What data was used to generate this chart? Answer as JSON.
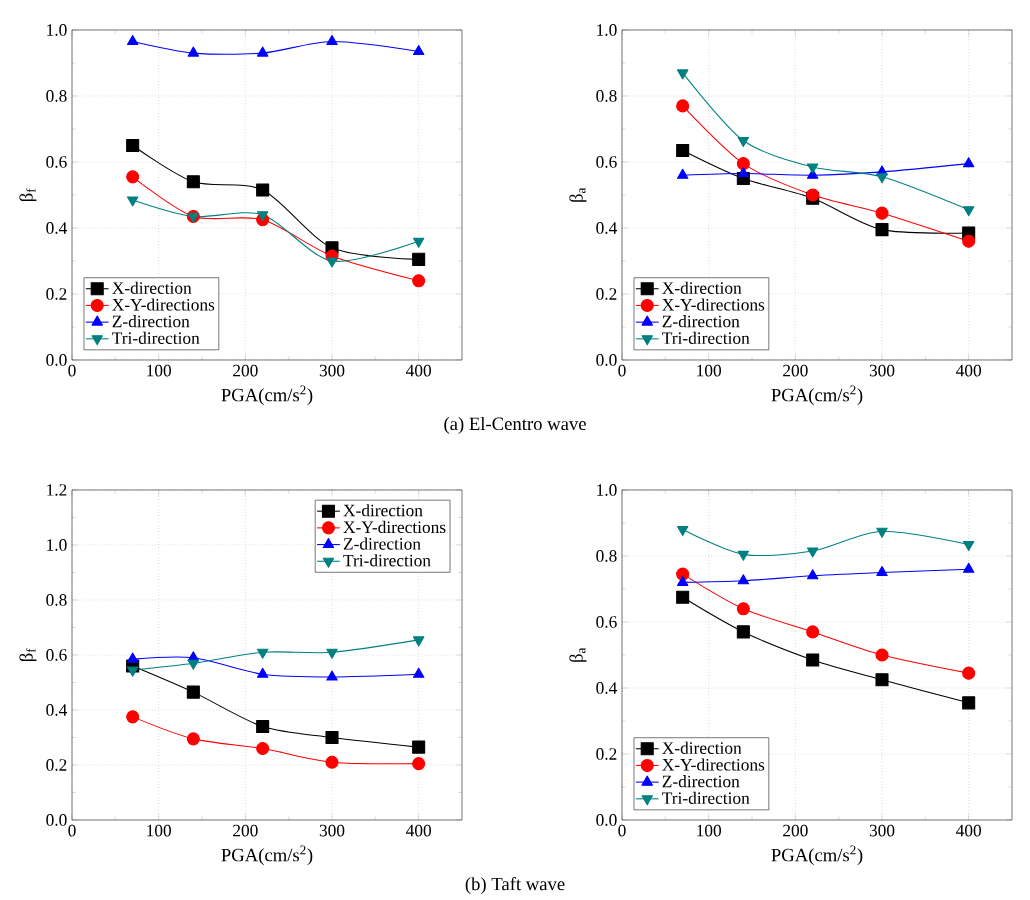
{
  "chart_data": [
    {
      "type": "line",
      "xlabel": "PGA(cm/s$^{2}$)",
      "ylabel": "β$_{f}$",
      "x": [
        70,
        140,
        220,
        300,
        400
      ],
      "xlim": [
        0,
        450
      ],
      "xticks": [
        0,
        100,
        200,
        300,
        400
      ],
      "ylim": [
        0,
        1.0
      ],
      "yticks": [
        {
          "value": 0,
          "label": "0.0"
        },
        {
          "value": 0.2,
          "label": "0.2"
        },
        {
          "value": 0.4,
          "label": "0.4"
        },
        {
          "value": 0.6,
          "label": "0.6"
        },
        {
          "value": 0.8,
          "label": "0.8"
        },
        {
          "value": 1.0,
          "label": "1.0"
        }
      ],
      "grid": true,
      "legend": "bottom left",
      "annotations": [
        "(a)  El-Centro wave"
      ],
      "series": [
        {
          "name": "X-direction",
          "color": "#000000",
          "marker": "square",
          "values": [
            0.65,
            0.54,
            0.515,
            0.34,
            0.305
          ]
        },
        {
          "name": "X-Y-directions",
          "color": "#ff0000",
          "marker": "circle",
          "values": [
            0.555,
            0.435,
            0.425,
            0.315,
            0.24
          ]
        },
        {
          "name": "Z-direction",
          "color": "#0000ff",
          "marker": "triangle",
          "values": [
            0.965,
            0.93,
            0.93,
            0.965,
            0.935
          ]
        },
        {
          "name": "Tri-direction",
          "color": "#008080",
          "marker": "triangle-down",
          "values": [
            0.485,
            0.435,
            0.44,
            0.3,
            0.36
          ]
        }
      ]
    },
    {
      "type": "line",
      "xlabel": "PGA(cm/s$^{2}$)",
      "ylabel": "β$_{a}$",
      "x": [
        70,
        140,
        220,
        300,
        400
      ],
      "xlim": [
        0,
        450
      ],
      "xticks": [
        0,
        100,
        200,
        300,
        400
      ],
      "ylim": [
        0,
        1.0
      ],
      "yticks": [
        {
          "value": 0,
          "label": "0.0"
        },
        {
          "value": 0.2,
          "label": "0.2"
        },
        {
          "value": 0.4,
          "label": "0.4"
        },
        {
          "value": 0.6,
          "label": "0.6"
        },
        {
          "value": 0.8,
          "label": "0.8"
        },
        {
          "value": 1.0,
          "label": "1.0"
        }
      ],
      "grid": true,
      "legend": "bottom left",
      "series": [
        {
          "name": "X-direction",
          "color": "#000000",
          "marker": "square",
          "values": [
            0.635,
            0.55,
            0.49,
            0.395,
            0.385
          ]
        },
        {
          "name": "X-Y-directions",
          "color": "#ff0000",
          "marker": "circle",
          "values": [
            0.77,
            0.595,
            0.5,
            0.445,
            0.36
          ]
        },
        {
          "name": "Z-direction",
          "color": "#0000ff",
          "marker": "triangle",
          "values": [
            0.56,
            0.565,
            0.56,
            0.57,
            0.595
          ]
        },
        {
          "name": "Tri-direction",
          "color": "#008080",
          "marker": "triangle-down",
          "values": [
            0.87,
            0.665,
            0.585,
            0.555,
            0.455
          ]
        }
      ]
    },
    {
      "type": "line",
      "xlabel": "PGA(cm/s$^{2}$)",
      "ylabel": "β$_{f}$",
      "x": [
        70,
        140,
        220,
        300,
        400
      ],
      "xlim": [
        0,
        450
      ],
      "xticks": [
        0,
        100,
        200,
        300,
        400
      ],
      "ylim": [
        0,
        1.2
      ],
      "yticks": [
        {
          "value": 0,
          "label": "0.0"
        },
        {
          "value": 0.2,
          "label": "0.2"
        },
        {
          "value": 0.4,
          "label": "0.4"
        },
        {
          "value": 0.6,
          "label": "0.6"
        },
        {
          "value": 0.8,
          "label": "0.8"
        },
        {
          "value": 1.0,
          "label": "1.0"
        },
        {
          "value": 1.2,
          "label": "1.2"
        }
      ],
      "grid": true,
      "legend": "top right",
      "annotations": [
        "(b)  Taft wave"
      ],
      "series": [
        {
          "name": "X-direction",
          "color": "#000000",
          "marker": "square",
          "values": [
            0.56,
            0.465,
            0.34,
            0.3,
            0.265
          ]
        },
        {
          "name": "X-Y-directions",
          "color": "#ff0000",
          "marker": "circle",
          "values": [
            0.375,
            0.295,
            0.26,
            0.21,
            0.205
          ]
        },
        {
          "name": "Z-direction",
          "color": "#0000ff",
          "marker": "triangle",
          "values": [
            0.585,
            0.59,
            0.53,
            0.52,
            0.53
          ]
        },
        {
          "name": "Tri-direction",
          "color": "#008080",
          "marker": "triangle-down",
          "values": [
            0.545,
            0.57,
            0.61,
            0.61,
            0.655
          ]
        }
      ]
    },
    {
      "type": "line",
      "xlabel": "PGA(cm/s$^{2}$)",
      "ylabel": "β$_{a}$",
      "x": [
        70,
        140,
        220,
        300,
        400
      ],
      "xlim": [
        0,
        450
      ],
      "xticks": [
        0,
        100,
        200,
        300,
        400
      ],
      "ylim": [
        0,
        1.0
      ],
      "yticks": [
        {
          "value": 0,
          "label": "0.0"
        },
        {
          "value": 0.2,
          "label": "0.2"
        },
        {
          "value": 0.4,
          "label": "0.4"
        },
        {
          "value": 0.6,
          "label": "0.6"
        },
        {
          "value": 0.8,
          "label": "0.8"
        },
        {
          "value": 1.0,
          "label": "1.0"
        }
      ],
      "grid": true,
      "legend": "bottom left",
      "series": [
        {
          "name": "X-direction",
          "color": "#000000",
          "marker": "square",
          "values": [
            0.675,
            0.57,
            0.485,
            0.425,
            0.355
          ]
        },
        {
          "name": "X-Y-directions",
          "color": "#ff0000",
          "marker": "circle",
          "values": [
            0.745,
            0.64,
            0.57,
            0.5,
            0.445
          ]
        },
        {
          "name": "Z-direction",
          "color": "#0000ff",
          "marker": "triangle",
          "values": [
            0.72,
            0.725,
            0.74,
            0.75,
            0.76
          ]
        },
        {
          "name": "Tri-direction",
          "color": "#008080",
          "marker": "triangle-down",
          "values": [
            0.88,
            0.805,
            0.815,
            0.875,
            0.835
          ]
        }
      ]
    }
  ]
}
